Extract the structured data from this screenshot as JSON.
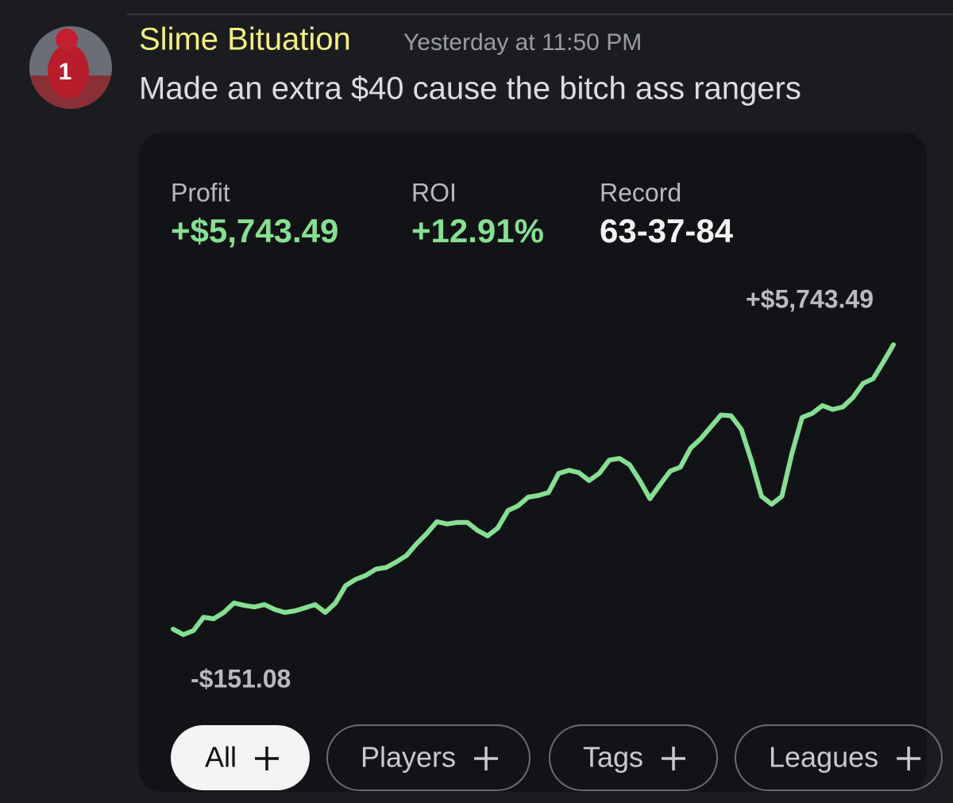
{
  "message": {
    "author": "Slime Bituation",
    "timestamp": "Yesterday at 11:50 PM",
    "text": "Made an extra $40 cause the bitch ass rangers"
  },
  "card": {
    "stats": [
      {
        "label": "Profit",
        "value": "+$5,743.49"
      },
      {
        "label": "ROI",
        "value": "+12.91%"
      },
      {
        "label": "Record",
        "value": "63-37-84"
      }
    ],
    "chart": {
      "type": "line",
      "color": "#86df92",
      "values": [
        -39,
        -151.08,
        -71,
        202,
        170,
        299,
        491,
        443,
        411,
        459,
        363,
        299,
        331,
        395,
        459,
        299,
        491,
        845,
        973,
        1054,
        1182,
        1214,
        1327,
        1455,
        1696,
        1905,
        2146,
        2098,
        2130,
        2130,
        1969,
        1857,
        2017,
        2371,
        2467,
        2644,
        2676,
        2740,
        3126,
        3190,
        3142,
        2981,
        3126,
        3399,
        3431,
        3302,
        2981,
        2612,
        2901,
        3174,
        3254,
        3640,
        3832,
        4073,
        4314,
        4298,
        4025,
        3383,
        2660,
        2499,
        2660,
        3543,
        4266,
        4346,
        4507,
        4427,
        4475,
        4668,
        4957,
        5053,
        5390,
        5743.49
      ],
      "max_label": {
        "value": 5743.49,
        "label": "+$5,743.49"
      },
      "min_label": {
        "value": -151.08,
        "label": "-$151.08"
      }
    },
    "filters": [
      "All",
      "Players",
      "Tags",
      "Leagues"
    ]
  }
}
